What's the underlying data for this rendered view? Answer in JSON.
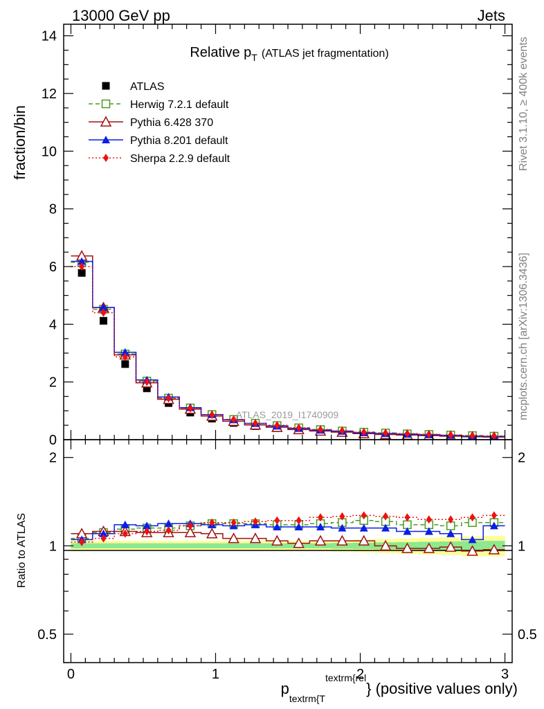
{
  "header": {
    "left": "13000 GeV pp",
    "right": "Jets"
  },
  "plot_title": {
    "main": "Relative p",
    "main_sub": "T",
    "paren": "(ATLAS jet fragmentation)"
  },
  "side_text": {
    "rivet": "Rivet 3.1.10, ≥ 400k events",
    "mcplots": "mcplots.cern.ch [arXiv:1306.3436]"
  },
  "watermark": "ATLAS_2019_I1740909",
  "xlabel": {
    "p": "p",
    "sub": "textrm{T",
    "sup": "textrm{rel",
    "rest": "} (positive values only)"
  },
  "colors": {
    "data": "#000000",
    "herwig": "#4a9a1e",
    "pythia6": "#a01010",
    "pythia8": "#0a1ee6",
    "sherpa": "#ee1111",
    "band_outer": "#fdfd9a",
    "band_inner": "#8ee88e"
  },
  "legend": [
    {
      "label": "ATLAS",
      "key": "data"
    },
    {
      "label": "Herwig 7.2.1 default",
      "key": "herwig"
    },
    {
      "label": "Pythia 6.428 370",
      "key": "pythia6"
    },
    {
      "label": "Pythia 8.201 default",
      "key": "pythia8"
    },
    {
      "label": "Sherpa 2.2.9 default",
      "key": "sherpa"
    }
  ],
  "chart_data": [
    {
      "type": "scatter",
      "panel": "main",
      "ylabel": "fraction/bin",
      "xlim": [
        -0.05,
        3.05
      ],
      "ylim": [
        0,
        14.4
      ],
      "yticks": [
        "0",
        "2",
        "4",
        "6",
        "8",
        "10",
        "12",
        "14"
      ],
      "x": [
        0.075,
        0.225,
        0.375,
        0.525,
        0.675,
        0.825,
        0.975,
        1.125,
        1.275,
        1.425,
        1.575,
        1.725,
        1.875,
        2.025,
        2.175,
        2.325,
        2.475,
        2.625,
        2.775,
        2.925
      ],
      "series": [
        {
          "name": "ATLAS",
          "key": "data",
          "values": [
            5.78,
            4.12,
            2.62,
            1.78,
            1.27,
            0.94,
            0.73,
            0.58,
            0.47,
            0.4,
            0.33,
            0.28,
            0.25,
            0.2,
            0.18,
            0.17,
            0.15,
            0.13,
            0.11,
            0.1
          ]
        },
        {
          "name": "Herwig 7.2.1 default",
          "key": "herwig",
          "values": [
            6.15,
            4.52,
            2.97,
            2.03,
            1.44,
            1.1,
            0.87,
            0.7,
            0.57,
            0.49,
            0.41,
            0.35,
            0.3,
            0.26,
            0.23,
            0.2,
            0.18,
            0.16,
            0.14,
            0.12
          ]
        },
        {
          "name": "Pythia 6.428 370",
          "key": "pythia6",
          "values": [
            6.37,
            4.58,
            2.94,
            1.97,
            1.4,
            1.06,
            0.82,
            0.64,
            0.51,
            0.43,
            0.35,
            0.3,
            0.26,
            0.21,
            0.18,
            0.16,
            0.14,
            0.12,
            0.1,
            0.09
          ]
        },
        {
          "name": "Pythia 8.201 default",
          "key": "pythia8",
          "values": [
            6.18,
            4.58,
            3.03,
            2.07,
            1.48,
            1.11,
            0.87,
            0.69,
            0.56,
            0.47,
            0.39,
            0.33,
            0.29,
            0.24,
            0.21,
            0.19,
            0.17,
            0.15,
            0.12,
            0.11
          ]
        },
        {
          "name": "Sherpa 2.2.9 default",
          "key": "sherpa",
          "values": [
            6.0,
            4.4,
            2.87,
            2.0,
            1.43,
            1.08,
            0.86,
            0.7,
            0.57,
            0.5,
            0.41,
            0.35,
            0.31,
            0.26,
            0.23,
            0.21,
            0.19,
            0.16,
            0.14,
            0.13
          ]
        }
      ]
    },
    {
      "type": "scatter",
      "panel": "ratio",
      "ylabel": "Ratio to ATLAS",
      "xlim": [
        -0.05,
        3.05
      ],
      "xticks": [
        "0",
        "1",
        "2",
        "3"
      ],
      "ylim": [
        0.4,
        2.3
      ],
      "yticks": [
        "0.5",
        "1",
        "2"
      ],
      "log_y": true,
      "x": [
        0.075,
        0.225,
        0.375,
        0.525,
        0.675,
        0.825,
        0.975,
        1.125,
        1.275,
        1.425,
        1.575,
        1.725,
        1.875,
        2.025,
        2.175,
        2.325,
        2.475,
        2.625,
        2.775,
        2.925
      ],
      "band_outer": [
        [
          0.96,
          1.04
        ],
        [
          0.96,
          1.04
        ],
        [
          0.96,
          1.04
        ],
        [
          0.96,
          1.04
        ],
        [
          0.96,
          1.04
        ],
        [
          0.96,
          1.04
        ],
        [
          0.96,
          1.04
        ],
        [
          0.96,
          1.04
        ],
        [
          0.96,
          1.04
        ],
        [
          0.96,
          1.04
        ],
        [
          0.96,
          1.04
        ],
        [
          0.96,
          1.04
        ],
        [
          0.955,
          1.045
        ],
        [
          0.95,
          1.05
        ],
        [
          0.945,
          1.055
        ],
        [
          0.94,
          1.06
        ],
        [
          0.935,
          1.065
        ],
        [
          0.93,
          1.07
        ],
        [
          0.92,
          1.075
        ],
        [
          0.92,
          1.08
        ]
      ],
      "band_inner": [
        [
          0.98,
          1.02
        ],
        [
          0.98,
          1.02
        ],
        [
          0.98,
          1.02
        ],
        [
          0.98,
          1.02
        ],
        [
          0.98,
          1.02
        ],
        [
          0.98,
          1.02
        ],
        [
          0.98,
          1.02
        ],
        [
          0.98,
          1.02
        ],
        [
          0.98,
          1.02
        ],
        [
          0.98,
          1.02
        ],
        [
          0.98,
          1.02
        ],
        [
          0.98,
          1.02
        ],
        [
          0.977,
          1.023
        ],
        [
          0.975,
          1.025
        ],
        [
          0.972,
          1.028
        ],
        [
          0.97,
          1.03
        ],
        [
          0.967,
          1.033
        ],
        [
          0.965,
          1.035
        ],
        [
          0.962,
          1.038
        ],
        [
          0.96,
          1.04
        ]
      ],
      "series": [
        {
          "name": "Herwig 7.2.1 default",
          "key": "herwig",
          "values": [
            1.06,
            1.11,
            1.14,
            1.15,
            1.15,
            1.17,
            1.19,
            1.19,
            1.19,
            1.18,
            1.18,
            1.19,
            1.2,
            1.22,
            1.21,
            1.18,
            1.18,
            1.17,
            1.2,
            1.2
          ]
        },
        {
          "name": "Pythia 6.428 370",
          "key": "pythia6",
          "values": [
            1.1,
            1.12,
            1.12,
            1.11,
            1.11,
            1.11,
            1.1,
            1.06,
            1.06,
            1.04,
            1.02,
            1.04,
            1.04,
            1.04,
            1.0,
            0.98,
            0.98,
            0.99,
            0.96,
            0.97
          ]
        },
        {
          "name": "Pythia 8.201 default",
          "key": "pythia8",
          "values": [
            1.05,
            1.1,
            1.18,
            1.17,
            1.19,
            1.19,
            1.18,
            1.17,
            1.18,
            1.16,
            1.16,
            1.16,
            1.15,
            1.15,
            1.15,
            1.12,
            1.12,
            1.1,
            1.05,
            1.17
          ]
        },
        {
          "name": "Sherpa 2.2.9 default",
          "key": "sherpa",
          "values": [
            1.03,
            1.06,
            1.1,
            1.12,
            1.13,
            1.17,
            1.2,
            1.2,
            1.21,
            1.22,
            1.22,
            1.25,
            1.26,
            1.27,
            1.26,
            1.25,
            1.23,
            1.23,
            1.25,
            1.27
          ]
        }
      ]
    }
  ]
}
